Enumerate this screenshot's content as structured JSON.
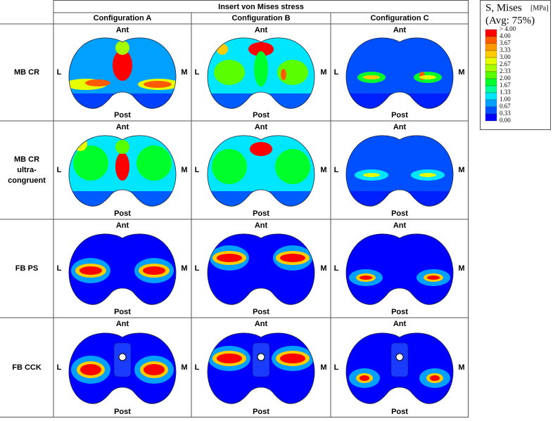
{
  "header": {
    "title": "Insert von Mises stress",
    "columns": [
      "Configuration A",
      "Configuration B",
      "Configuration C"
    ]
  },
  "rows": [
    [
      "MB CR"
    ],
    [
      "MB CR",
      "ultra-",
      "congruent"
    ],
    [
      "FB PS"
    ],
    [
      "FB CCK"
    ]
  ],
  "labels": {
    "anterior": "Ant",
    "posterior": "Post",
    "lateral": "L",
    "medial": "M"
  },
  "legend": {
    "title": "S, Mises",
    "unit": "[MPa]",
    "subtitle": "(Avg: 75%)",
    "levels": [
      "> 4.00",
      "4.00",
      "3.67",
      "3.33",
      "3.00",
      "2.67",
      "2.33",
      "2.00",
      "1.67",
      "1.33",
      "1.00",
      "0.67",
      "0.33",
      "0.00"
    ],
    "colors": [
      "#ff0000",
      "#ff5a00",
      "#ff9900",
      "#ffcc00",
      "#e6ff00",
      "#a6ff00",
      "#5aff00",
      "#00ff2a",
      "#00ff99",
      "#00e6ff",
      "#00a0ff",
      "#0050ff",
      "#0000ff"
    ]
  }
}
